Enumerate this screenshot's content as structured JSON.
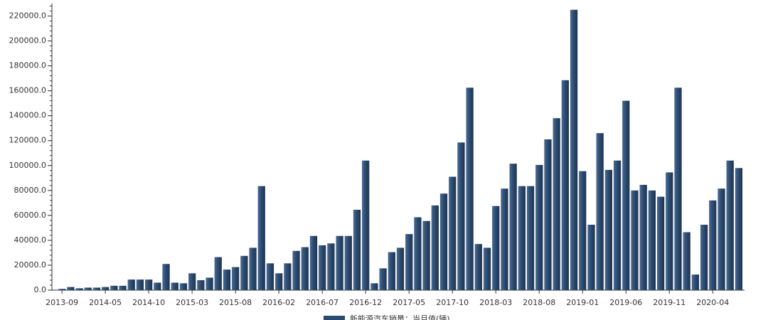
{
  "chart_data": {
    "type": "bar",
    "categories": [
      "2013-09",
      null,
      null,
      null,
      null,
      "2014-05",
      null,
      null,
      null,
      null,
      "2014-10",
      null,
      null,
      null,
      null,
      "2015-03",
      null,
      null,
      null,
      null,
      "2015-08",
      null,
      null,
      null,
      null,
      "2016-02",
      null,
      null,
      null,
      null,
      "2016-07",
      null,
      null,
      null,
      null,
      "2016-12",
      null,
      null,
      null,
      null,
      "2017-05",
      null,
      null,
      null,
      null,
      "2017-10",
      null,
      null,
      null,
      null,
      "2018-03",
      null,
      null,
      null,
      null,
      "2018-08",
      null,
      null,
      null,
      null,
      "2019-01",
      null,
      null,
      null,
      null,
      "2019-06",
      null,
      null,
      null,
      null,
      "2019-11",
      null,
      null,
      null,
      null,
      "2020-04",
      null,
      null,
      null
    ],
    "series": [
      {
        "name": "新能源汽车销量：当月值(辆)",
        "color": "#2c4a6e",
        "values": [
          1000,
          2500,
          1500,
          2000,
          2000,
          2500,
          3500,
          3500,
          8500,
          8500,
          8500,
          6000,
          21000,
          6000,
          5500,
          13500,
          8000,
          10000,
          26500,
          16500,
          18500,
          27500,
          34000,
          83500,
          21500,
          13500,
          21500,
          31500,
          34500,
          43500,
          36000,
          37500,
          43500,
          43500,
          64500,
          104000,
          5500,
          17500,
          30500,
          34000,
          45000,
          58500,
          55500,
          68000,
          77500,
          91000,
          118500,
          162500,
          37000,
          34000,
          67500,
          81500,
          101500,
          83500,
          83500,
          100500,
          121000,
          138000,
          168500,
          225000,
          95500,
          52500,
          126000,
          96500,
          104000,
          152000,
          80000,
          84500,
          80000,
          75000,
          94500,
          162500,
          46500,
          12500,
          52500,
          72000,
          81500,
          104000,
          98000
        ]
      }
    ],
    "ylim": [
      0,
      230000
    ],
    "yticks": [
      {
        "value": 0,
        "label": "0.0"
      },
      {
        "value": 20000,
        "label": "20000.0"
      },
      {
        "value": 40000,
        "label": "40000.0"
      },
      {
        "value": 60000,
        "label": "60000.0"
      },
      {
        "value": 80000,
        "label": "80000.0"
      },
      {
        "value": 100000,
        "label": "100000.0"
      },
      {
        "value": 120000,
        "label": "120000.0"
      },
      {
        "value": 140000,
        "label": "140000.0"
      },
      {
        "value": 160000,
        "label": "160000.0"
      },
      {
        "value": 180000,
        "label": "180000.0"
      },
      {
        "value": 200000,
        "label": "200000.0"
      },
      {
        "value": 220000,
        "label": "220000.0"
      }
    ],
    "legend": "bottom"
  }
}
